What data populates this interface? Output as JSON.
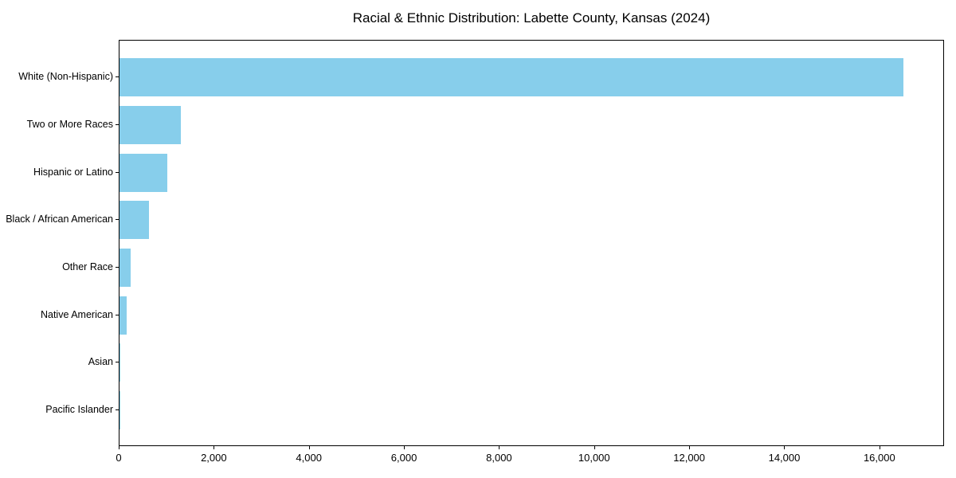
{
  "chart_data": {
    "type": "bar",
    "orientation": "horizontal",
    "title": "Racial & Ethnic Distribution: Labette County, Kansas (2024)",
    "categories": [
      "White (Non-Hispanic)",
      "Two or More Races",
      "Hispanic or Latino",
      "Black / African American",
      "Other Race",
      "Native American",
      "Asian",
      "Pacific Islander"
    ],
    "values": [
      16520,
      1300,
      1000,
      620,
      235,
      150,
      25,
      10
    ],
    "xlabel": "",
    "ylabel": "",
    "xlim": [
      0,
      17360
    ],
    "xticks": [
      0,
      2000,
      4000,
      6000,
      8000,
      10000,
      12000,
      14000,
      16000
    ],
    "xtick_labels": [
      "0",
      "2,000",
      "4,000",
      "6,000",
      "8,000",
      "10,000",
      "12,000",
      "14,000",
      "16,000"
    ],
    "bar_color": "#87CEEB",
    "background_color": "#ffffff",
    "grid": false,
    "legend": "none"
  }
}
